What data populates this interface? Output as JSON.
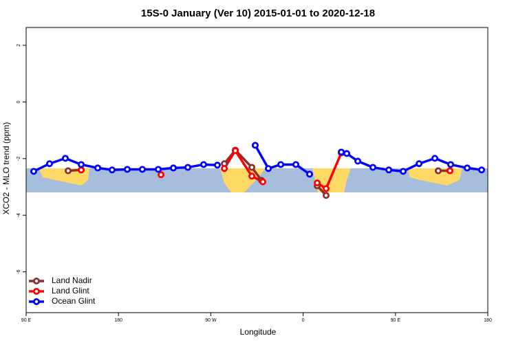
{
  "chart_data": {
    "type": "line",
    "title": "15S-0 January (Ver 10)   2015-01-01 to 2020-12-18",
    "x_label": "Longitude",
    "y_label": "XCO2 - MLO trend (ppm)",
    "xlim": [
      90,
      540
    ],
    "xticks": [
      {
        "value": 90,
        "label": "90 E"
      },
      {
        "value": 180,
        "label": "180"
      },
      {
        "value": 270,
        "label": "90 W"
      },
      {
        "value": 360,
        "label": "0"
      },
      {
        "value": 450,
        "label": "90 E"
      },
      {
        "value": 540,
        "label": "180"
      }
    ],
    "ylim": [
      -7.44,
      2.63
    ],
    "yticks": [
      2,
      0,
      -2,
      -4,
      -6
    ],
    "legend": "bottom-left",
    "series": [
      {
        "name": "Land Nadir",
        "color": "#8b2e2e",
        "x": [
          130.9,
          143.7,
          null,
          283.2,
          293.9,
          310.0,
          319.4,
          null,
          373.7,
          382.4,
          null,
          491.7,
          503.1
        ],
        "values": [
          -2.43,
          -2.4,
          null,
          -2.18,
          -1.7,
          -2.31,
          -2.77,
          null,
          -2.96,
          -3.3,
          null,
          -2.43,
          -2.43
        ]
      },
      {
        "name": "Land Glint",
        "color": "#ff0000",
        "x": [
          143.7,
          null,
          221.5,
          null,
          283.2,
          293.9,
          310.0,
          320.7,
          null,
          373.7,
          382.4,
          397.2,
          null,
          503.1
        ],
        "values": [
          -2.4,
          null,
          -2.57,
          null,
          -2.35,
          -1.72,
          -2.62,
          -2.82,
          null,
          -2.86,
          -3.06,
          -1.8,
          null,
          -2.43
        ]
      },
      {
        "name": "Ocean Glint",
        "color": "#0000ff",
        "x": [
          97.4,
          112.8,
          128.2,
          143.7,
          159.8,
          173.8,
          188.6,
          203.3,
          218.8,
          233.5,
          247.6,
          263.0,
          276.4,
          null,
          313.3,
          326.1,
          338.2,
          352.9,
          366.3,
          null,
          397.2,
          402.5,
          413.3,
          428.0,
          443.5,
          457.5,
          473.0,
          488.4,
          503.8,
          519.9,
          534.0
        ],
        "values": [
          -2.45,
          -2.18,
          -1.99,
          -2.21,
          -2.33,
          -2.4,
          -2.38,
          -2.38,
          -2.38,
          -2.33,
          -2.31,
          -2.21,
          -2.23,
          null,
          -1.53,
          -2.35,
          -2.21,
          -2.21,
          -2.55,
          null,
          -1.77,
          -1.82,
          -2.09,
          -2.31,
          -2.4,
          -2.45,
          -2.18,
          -1.99,
          -2.21,
          -2.33,
          -2.4
        ]
      }
    ]
  }
}
